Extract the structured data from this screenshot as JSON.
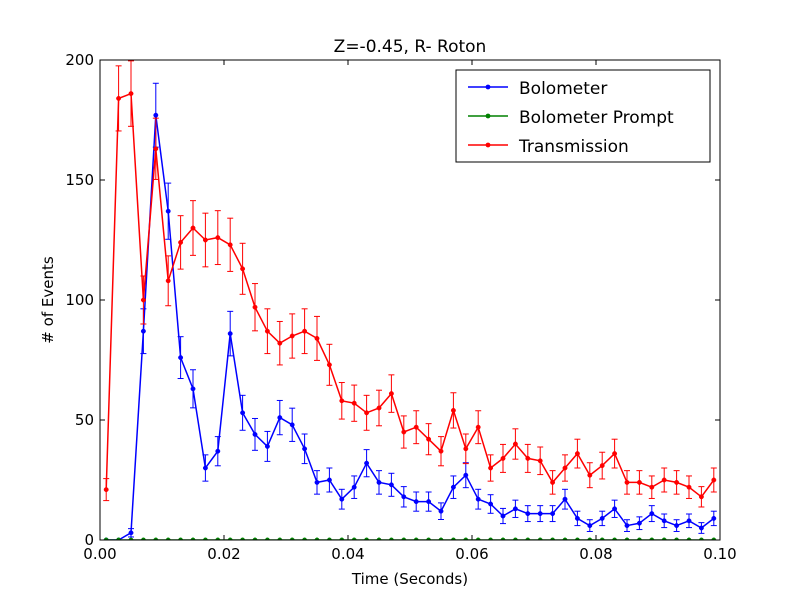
{
  "chart_data": {
    "type": "line",
    "title": "Z=-0.45, R- Roton",
    "xlabel": "Time (Seconds)",
    "ylabel": "# of Events",
    "xlim": [
      0.0,
      0.1
    ],
    "ylim": [
      0,
      200
    ],
    "xticks": [
      "0.00",
      "0.02",
      "0.04",
      "0.06",
      "0.08",
      "0.10"
    ],
    "yticks": [
      "0",
      "50",
      "100",
      "150",
      "200"
    ],
    "grid": false,
    "legend_position": "top-right",
    "x": [
      0.001,
      0.003,
      0.005,
      0.007,
      0.009,
      0.011,
      0.013,
      0.015,
      0.017,
      0.019,
      0.021,
      0.023,
      0.025,
      0.027,
      0.029,
      0.031,
      0.033,
      0.035,
      0.037,
      0.039,
      0.041,
      0.043,
      0.045,
      0.047,
      0.049,
      0.051,
      0.053,
      0.055,
      0.057,
      0.059,
      0.061,
      0.063,
      0.065,
      0.067,
      0.069,
      0.071,
      0.073,
      0.075,
      0.077,
      0.079,
      0.081,
      0.083,
      0.085,
      0.087,
      0.089,
      0.091,
      0.093,
      0.095,
      0.097,
      0.099
    ],
    "series": [
      {
        "name": "Bolometer",
        "color": "#0000ff",
        "values": [
          0,
          0,
          3,
          87,
          177,
          137,
          76,
          63,
          30,
          37,
          86,
          53,
          44,
          39,
          51,
          48,
          38,
          24,
          25,
          17,
          22,
          32,
          24,
          23,
          18,
          16,
          16,
          12,
          22,
          27,
          17,
          15,
          10,
          13,
          11,
          11,
          11,
          17,
          9,
          6,
          9,
          13,
          6,
          7,
          11,
          8,
          6,
          8,
          5,
          9
        ]
      },
      {
        "name": "Bolometer Prompt",
        "color": "#008000",
        "values": [
          0,
          0,
          0,
          0,
          0,
          0,
          0,
          0,
          0,
          0,
          0,
          0,
          0,
          0,
          0,
          0,
          0,
          0,
          0,
          0,
          0,
          0,
          0,
          0,
          0,
          0,
          0,
          0,
          0,
          0,
          0,
          0,
          0,
          0,
          0,
          0,
          0,
          0,
          0,
          0,
          0,
          0,
          0,
          0,
          0,
          0,
          0,
          0,
          0,
          0
        ]
      },
      {
        "name": "Transmission",
        "color": "#ff0000",
        "values": [
          21,
          184,
          186,
          100,
          163,
          108,
          124,
          130,
          125,
          126,
          123,
          113,
          97,
          87,
          82,
          85,
          87,
          84,
          73,
          58,
          57,
          53,
          55,
          61,
          45,
          47,
          42,
          37,
          54,
          38,
          47,
          30,
          34,
          40,
          34,
          33,
          24,
          30,
          36,
          27,
          31,
          36,
          24,
          24,
          22,
          25,
          24,
          22,
          18,
          25
        ]
      }
    ]
  }
}
